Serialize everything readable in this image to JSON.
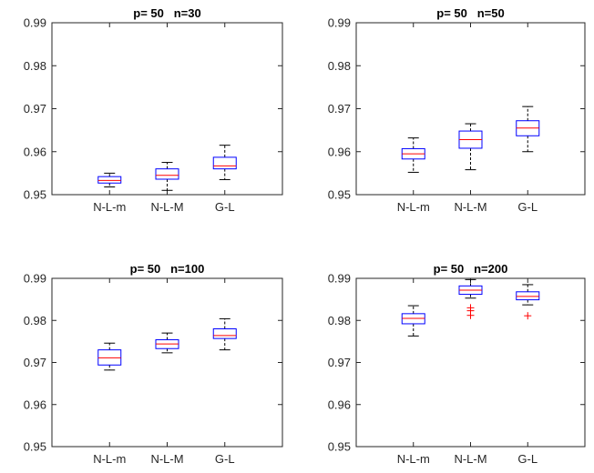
{
  "chart_data": [
    {
      "type": "box",
      "title": "p= 50   n=30",
      "categories": [
        "N-L-m",
        "N-L-M",
        "G-L"
      ],
      "ylim": [
        0.95,
        0.99
      ],
      "yticks": [
        "0.95",
        "0.96",
        "0.97",
        "0.98",
        "0.99"
      ],
      "boxes": [
        {
          "name": "N-L-m",
          "whisker_low": 0.9518,
          "q1": 0.9527,
          "median": 0.9533,
          "q3": 0.9542,
          "whisker_high": 0.955,
          "outliers": []
        },
        {
          "name": "N-L-M",
          "whisker_low": 0.951,
          "q1": 0.9536,
          "median": 0.9545,
          "q3": 0.956,
          "whisker_high": 0.9575,
          "outliers": []
        },
        {
          "name": "G-L",
          "whisker_low": 0.9535,
          "q1": 0.956,
          "median": 0.9567,
          "q3": 0.9587,
          "whisker_high": 0.9615,
          "outliers": []
        }
      ]
    },
    {
      "type": "box",
      "title": "p= 50   n=50",
      "categories": [
        "N-L-m",
        "N-L-M",
        "G-L"
      ],
      "ylim": [
        0.95,
        0.99
      ],
      "yticks": [
        "0.95",
        "0.96",
        "0.97",
        "0.98",
        "0.99"
      ],
      "boxes": [
        {
          "name": "N-L-m",
          "whisker_low": 0.9552,
          "q1": 0.9583,
          "median": 0.9595,
          "q3": 0.9607,
          "whisker_high": 0.9632,
          "outliers": []
        },
        {
          "name": "N-L-M",
          "whisker_low": 0.9558,
          "q1": 0.9608,
          "median": 0.9628,
          "q3": 0.9648,
          "whisker_high": 0.9665,
          "outliers": []
        },
        {
          "name": "G-L",
          "whisker_low": 0.96,
          "q1": 0.9637,
          "median": 0.9655,
          "q3": 0.9672,
          "whisker_high": 0.9705,
          "outliers": []
        }
      ]
    },
    {
      "type": "box",
      "title": "p= 50   n=100",
      "categories": [
        "N-L-m",
        "N-L-M",
        "G-L"
      ],
      "ylim": [
        0.95,
        0.99
      ],
      "yticks": [
        "0.95",
        "0.96",
        "0.97",
        "0.98",
        "0.99"
      ],
      "boxes": [
        {
          "name": "N-L-m",
          "whisker_low": 0.9682,
          "q1": 0.9694,
          "median": 0.9711,
          "q3": 0.973,
          "whisker_high": 0.9746,
          "outliers": []
        },
        {
          "name": "N-L-M",
          "whisker_low": 0.9723,
          "q1": 0.9733,
          "median": 0.9744,
          "q3": 0.9754,
          "whisker_high": 0.977,
          "outliers": []
        },
        {
          "name": "G-L",
          "whisker_low": 0.973,
          "q1": 0.9757,
          "median": 0.9764,
          "q3": 0.978,
          "whisker_high": 0.9804,
          "outliers": []
        }
      ]
    },
    {
      "type": "box",
      "title": "p= 50   n=200",
      "categories": [
        "N-L-m",
        "N-L-M",
        "G-L"
      ],
      "ylim": [
        0.95,
        0.99
      ],
      "yticks": [
        "0.95",
        "0.96",
        "0.97",
        "0.98",
        "0.99"
      ],
      "boxes": [
        {
          "name": "N-L-m",
          "whisker_low": 0.9763,
          "q1": 0.9792,
          "median": 0.9805,
          "q3": 0.9816,
          "whisker_high": 0.9835,
          "outliers": []
        },
        {
          "name": "N-L-M",
          "whisker_low": 0.9853,
          "q1": 0.9862,
          "median": 0.9872,
          "q3": 0.9882,
          "whisker_high": 0.9897,
          "outliers": [
            0.9812,
            0.9823,
            0.983
          ]
        },
        {
          "name": "G-L",
          "whisker_low": 0.9837,
          "q1": 0.9849,
          "median": 0.9857,
          "q3": 0.9868,
          "whisker_high": 0.9885,
          "outliers": [
            0.9811
          ]
        }
      ]
    }
  ],
  "colors": {
    "box": "#0000ff",
    "median": "#ff0000",
    "whisker": "#000000",
    "outlier": "#ff0000",
    "axes": "#262626"
  }
}
